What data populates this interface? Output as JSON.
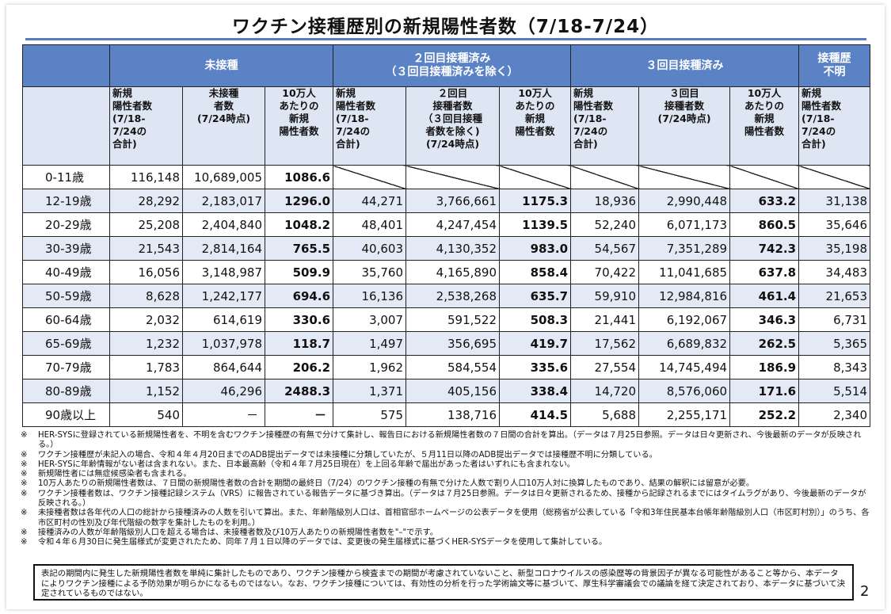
{
  "title": "ワクチン接種歴別の新規陽性者数（7/18-7/24）",
  "group_headers": {
    "unvaccinated": "未接種",
    "two_doses_line1": "２回目接種済み",
    "two_doses_line2": "（３回目接種済みを除く）",
    "three_doses": "３回目接種済み",
    "unknown_line1": "接種歴",
    "unknown_line2": "不明"
  },
  "sub_headers": {
    "new_cases": [
      "新規",
      "陽性者数",
      "(7/18-",
      "7/24の",
      "合計)"
    ],
    "unvacc_pop": [
      "未接種",
      "者数",
      "(7/24時点)"
    ],
    "per100k": [
      "10万人",
      "あたりの",
      "新規",
      "陽性者数"
    ],
    "dose2_pop": [
      "２回目",
      "接種者数",
      "（３回目接種",
      "者数を除く)",
      "(7/24時点)"
    ],
    "dose3_pop": [
      "３回目",
      "接種者数",
      "(7/24時点)"
    ]
  },
  "rows": [
    {
      "age": "0-11歳",
      "u_new": "116,148",
      "u_pop": "10,689,005",
      "u_rate": "1086.6",
      "d2_new": "",
      "d2_pop": "",
      "d2_rate": "",
      "d3_new": "",
      "d3_pop": "",
      "d3_rate": "",
      "unk": ""
    },
    {
      "age": "12-19歳",
      "u_new": "28,292",
      "u_pop": "2,183,017",
      "u_rate": "1296.0",
      "d2_new": "44,271",
      "d2_pop": "3,766,661",
      "d2_rate": "1175.3",
      "d3_new": "18,936",
      "d3_pop": "2,990,448",
      "d3_rate": "633.2",
      "unk": "31,138"
    },
    {
      "age": "20-29歳",
      "u_new": "25,208",
      "u_pop": "2,404,840",
      "u_rate": "1048.2",
      "d2_new": "48,401",
      "d2_pop": "4,247,454",
      "d2_rate": "1139.5",
      "d3_new": "52,240",
      "d3_pop": "6,071,173",
      "d3_rate": "860.5",
      "unk": "35,646"
    },
    {
      "age": "30-39歳",
      "u_new": "21,543",
      "u_pop": "2,814,164",
      "u_rate": "765.5",
      "d2_new": "40,603",
      "d2_pop": "4,130,352",
      "d2_rate": "983.0",
      "d3_new": "54,567",
      "d3_pop": "7,351,289",
      "d3_rate": "742.3",
      "unk": "35,198"
    },
    {
      "age": "40-49歳",
      "u_new": "16,056",
      "u_pop": "3,148,987",
      "u_rate": "509.9",
      "d2_new": "35,760",
      "d2_pop": "4,165,890",
      "d2_rate": "858.4",
      "d3_new": "70,422",
      "d3_pop": "11,041,685",
      "d3_rate": "637.8",
      "unk": "34,483"
    },
    {
      "age": "50-59歳",
      "u_new": "8,628",
      "u_pop": "1,242,177",
      "u_rate": "694.6",
      "d2_new": "16,136",
      "d2_pop": "2,538,268",
      "d2_rate": "635.7",
      "d3_new": "59,910",
      "d3_pop": "12,984,816",
      "d3_rate": "461.4",
      "unk": "21,653"
    },
    {
      "age": "60-64歳",
      "u_new": "2,032",
      "u_pop": "614,619",
      "u_rate": "330.6",
      "d2_new": "3,007",
      "d2_pop": "591,522",
      "d2_rate": "508.3",
      "d3_new": "21,441",
      "d3_pop": "6,192,067",
      "d3_rate": "346.3",
      "unk": "6,731"
    },
    {
      "age": "65-69歳",
      "u_new": "1,232",
      "u_pop": "1,037,978",
      "u_rate": "118.7",
      "d2_new": "1,497",
      "d2_pop": "356,695",
      "d2_rate": "419.7",
      "d3_new": "17,562",
      "d3_pop": "6,689,832",
      "d3_rate": "262.5",
      "unk": "5,365"
    },
    {
      "age": "70-79歳",
      "u_new": "1,783",
      "u_pop": "864,644",
      "u_rate": "206.2",
      "d2_new": "1,962",
      "d2_pop": "584,554",
      "d2_rate": "335.6",
      "d3_new": "27,554",
      "d3_pop": "14,745,494",
      "d3_rate": "186.9",
      "unk": "8,343"
    },
    {
      "age": "80-89歳",
      "u_new": "1,152",
      "u_pop": "46,296",
      "u_rate": "2488.3",
      "d2_new": "1,371",
      "d2_pop": "405,156",
      "d2_rate": "338.4",
      "d3_new": "14,720",
      "d3_pop": "8,576,060",
      "d3_rate": "171.6",
      "unk": "5,514"
    },
    {
      "age": "90歳以上",
      "u_new": "540",
      "u_pop": "－",
      "u_rate": "－",
      "d2_new": "575",
      "d2_pop": "138,716",
      "d2_rate": "414.5",
      "d3_new": "5,688",
      "d3_pop": "2,255,171",
      "d3_rate": "252.2",
      "unk": "2,340"
    }
  ],
  "notes": [
    {
      "mark": "※",
      "text": "HER-SYSに登録されている新規陽性者を、不明を含むワクチン接種歴の有無で分けて集計し、報告日における新規陽性者数の７日間の合計を算出。（データは７月25日参照。データは日々更新され、今後最新のデータが反映される。）"
    },
    {
      "mark": "※",
      "text": "ワクチン接種歴が未記入の場合、令和４年４月20日までのADB提出データでは未接種に分類していたが、５月11日以降のADB提出データでは接種歴不明に分類している。"
    },
    {
      "mark": "※",
      "text": "HER-SYSに年齢情報がない者は含まれない。また、日本最高齢（令和４年７月25日現在）を上回る年齢で届出があった者はいずれにも含まれない。"
    },
    {
      "mark": "※",
      "text": "新規陽性者には無症候感染者も含まれる。"
    },
    {
      "mark": "※",
      "text": "10万人あたりの新規陽性者数は、７日間の新規陽性者数の合計を期間の最終日（7/24）のワクチン接種の有無で分けた人数で割り人口10万人対に換算したものであり、結果の解釈には留意が必要。"
    },
    {
      "mark": "※",
      "text": "ワクチン接種者数は、ワクチン接種記録システム（VRS）に報告されている報告データに基づき算出。（データは７月25日参照。データは日々更新されるため、接種から記録されるまでにはタイムラグがあり、今後最新のデータが反映される。）"
    },
    {
      "mark": "※",
      "text": "未接種者数は各年代の人口の総計から接種済みの人数を引いて算出。また、年齢階級別人口は、首相官邸ホームページの公表データを使用（総務省が公表している「令和3年住民基本台帳年齢階級別人口（市区町村別）」のうち、各市区町村の性別及び年代階級の数字を集計したものを利用。）"
    },
    {
      "mark": "※",
      "text": "接種済みの人数が年齢階級別人口を超える場合は、未接種者数及び10万人あたりの新規陽性者数を\"–\"で示す。"
    },
    {
      "mark": "※",
      "text": "令和４年６月30日に発生届様式が変更されたため、同年７月１日以降のデータでは、変更後の発生届様式に基づくHER-SYSデータを使用して集計している。"
    }
  ],
  "disclaimer": "表記の期間内に発生した新規陽性者数を単純に集計したものであり、ワクチン接種から検査までの期間が考慮されていないこと、新型コロナウイルスの感染歴等の背景因子が異なる可能性があること等から、本データによりワクチン接種による予防効果が明らかになるものではない。なお、ワクチン接種については、有効性の分析を行った学術論文等に基づいて、厚生科学審議会での議論を経て決定されており、本データに基づいて決定されているものではない。",
  "page_number": "2"
}
